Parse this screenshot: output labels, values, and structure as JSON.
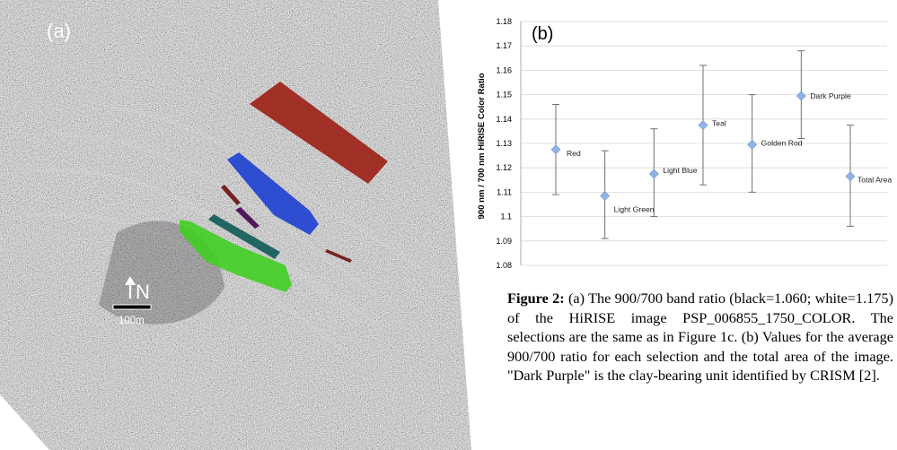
{
  "panel_a": {
    "label": "(a)",
    "north_label": "N",
    "scale_label": "100m",
    "regions": [
      {
        "name": "Red",
        "color": "#9b1a10"
      },
      {
        "name": "Dark Purple",
        "color": "#4a0f55"
      },
      {
        "name": "Blue",
        "color": "#1d3fd0"
      },
      {
        "name": "Teal",
        "color": "#0f5a54"
      },
      {
        "name": "Light Green",
        "color": "#3ecf1e"
      },
      {
        "name": "Golden Rod",
        "color": "#6e1a18"
      }
    ]
  },
  "chart_data": {
    "type": "scatter",
    "panel_label": "(b)",
    "ylabel": "900 nm / 700 nm HiRISE Color Ratio",
    "ylim": [
      1.08,
      1.18
    ],
    "yticks": [
      "1.08",
      "1.09",
      "1.1",
      "1.11",
      "1.12",
      "1.13",
      "1.14",
      "1.15",
      "1.16",
      "1.17",
      "1.18"
    ],
    "grid": true,
    "marker_color": "#8fb3e3",
    "categories": [
      "Red",
      "Light Green",
      "Light Blue",
      "Teal",
      "Golden Rod",
      "Dark Purple",
      "Total Area"
    ],
    "values": [
      1.1275,
      1.1085,
      1.1175,
      1.1375,
      1.1295,
      1.1495,
      1.1165
    ],
    "err_low": [
      1.109,
      1.091,
      1.1,
      1.113,
      1.11,
      1.132,
      1.096
    ],
    "err_high": [
      1.146,
      1.127,
      1.136,
      1.162,
      1.15,
      1.168,
      1.1375
    ]
  },
  "caption": {
    "lead": "Figure 2:",
    "text": " (a) The 900/700 band ratio (black=1.060; white=1.175) of the HiRISE image PSP_006855_1750_COLOR. The selections are the same as in Figure 1c. (b) Values for the average 900/700 ratio for each selection and the total area of the image. \"Dark Purple\" is the clay-bearing unit identified by CRISM [2]."
  }
}
